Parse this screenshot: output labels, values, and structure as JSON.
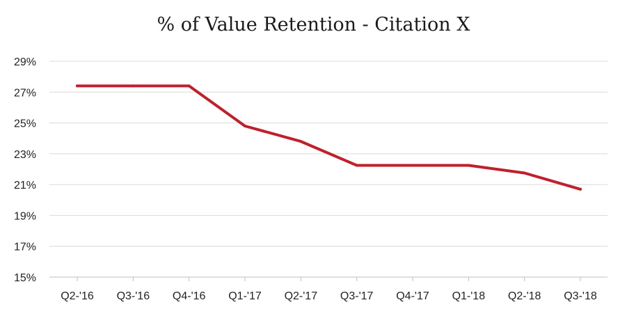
{
  "chart_data": {
    "type": "line",
    "title": "% of Value Retention - Citation X",
    "xlabel": "",
    "ylabel": "",
    "categories": [
      "Q2-'16",
      "Q3-'16",
      "Q4-'16",
      "Q1-'17",
      "Q2-'17",
      "Q3-'17",
      "Q4-'17",
      "Q1-'18",
      "Q2-'18",
      "Q3-'18"
    ],
    "series": [
      {
        "values": [
          27.4,
          27.4,
          27.4,
          24.8,
          23.8,
          22.25,
          22.25,
          22.25,
          21.75,
          20.7
        ],
        "color": "#c0202c"
      }
    ],
    "ylim": [
      15,
      29
    ],
    "yticks": [
      29,
      27,
      25,
      23,
      21,
      19,
      17,
      15
    ],
    "ytick_labels": [
      "29%",
      "27%",
      "25%",
      "23%",
      "21%",
      "19%",
      "17%",
      "15%"
    ],
    "grid": true,
    "legend": "none"
  }
}
